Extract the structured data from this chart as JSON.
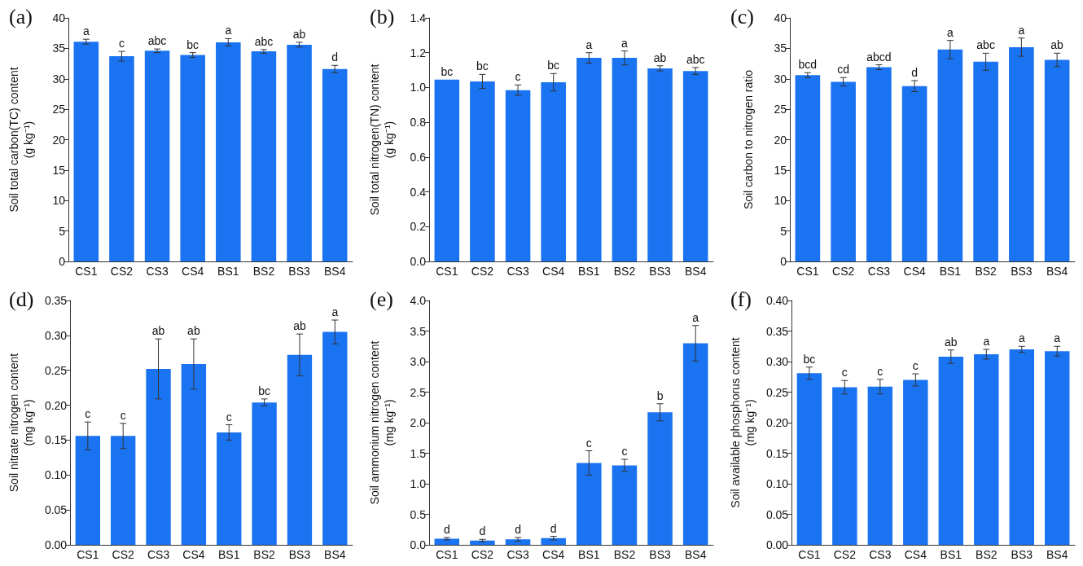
{
  "chart_data": [
    {
      "type": "bar",
      "title": "(a)",
      "ylabel": "Soil total carbon(TC) content\n(g kg⁻¹)",
      "categories": [
        "CS1",
        "CS2",
        "CS3",
        "CS4",
        "BS1",
        "BS2",
        "BS3",
        "BS4"
      ],
      "values": [
        36.1,
        33.7,
        34.6,
        33.9,
        36.0,
        34.5,
        35.6,
        31.6
      ],
      "errors": [
        0.4,
        0.8,
        0.3,
        0.4,
        0.6,
        0.3,
        0.4,
        0.6
      ],
      "color": "#1a73f0",
      "ylim": [
        0,
        40
      ],
      "yticks": [
        0,
        5,
        10,
        15,
        20,
        25,
        30,
        35,
        40
      ],
      "annotations": [
        {
          "text": "a",
          "x": "CS1",
          "y": 36.1
        },
        {
          "text": "c",
          "x": "CS2",
          "y": 33.7
        },
        {
          "text": "abc",
          "x": "CS3",
          "y": 34.6
        },
        {
          "text": "bc",
          "x": "CS4",
          "y": 33.9
        },
        {
          "text": "a",
          "x": "BS1",
          "y": 36.0
        },
        {
          "text": "abc",
          "x": "BS2",
          "y": 34.5
        },
        {
          "text": "ab",
          "x": "BS3",
          "y": 35.6
        },
        {
          "text": "d",
          "x": "BS4",
          "y": 31.6
        }
      ]
    },
    {
      "type": "bar",
      "title": "(b)",
      "ylabel": "Soil total nitrogen(TN) content\n(g kg⁻¹)",
      "categories": [
        "CS1",
        "CS2",
        "CS3",
        "CS4",
        "BS1",
        "BS2",
        "BS3",
        "BS4"
      ],
      "values": [
        1.045,
        1.035,
        0.985,
        1.03,
        1.17,
        1.17,
        1.11,
        1.095
      ],
      "errors": [
        null,
        0.04,
        0.03,
        0.05,
        0.03,
        0.04,
        0.015,
        0.02
      ],
      "color": "#1a73f0",
      "ylim": [
        0,
        1.4
      ],
      "yticks": [
        {
          "value": 0,
          "label": "0.0"
        },
        0.2,
        0.4,
        0.6,
        0.8,
        {
          "value": 1,
          "label": "1.0"
        },
        1.2,
        1.4
      ],
      "annotations": [
        {
          "text": "bc",
          "x": "CS1",
          "y": 1.045
        },
        {
          "text": "bc",
          "x": "CS2",
          "y": 1.035
        },
        {
          "text": "c",
          "x": "CS3",
          "y": 0.985
        },
        {
          "text": "bc",
          "x": "CS4",
          "y": 1.03
        },
        {
          "text": "a",
          "x": "BS1",
          "y": 1.17
        },
        {
          "text": "a",
          "x": "BS2",
          "y": 1.17
        },
        {
          "text": "ab",
          "x": "BS3",
          "y": 1.11
        },
        {
          "text": "abc",
          "x": "BS4",
          "y": 1.095
        }
      ]
    },
    {
      "type": "bar",
      "title": "(c)",
      "ylabel": "Soil carbon to nitrogen ratio",
      "categories": [
        "CS1",
        "CS2",
        "CS3",
        "CS4",
        "BS1",
        "BS2",
        "BS3",
        "BS4"
      ],
      "values": [
        30.6,
        29.5,
        31.9,
        28.8,
        34.8,
        32.8,
        35.2,
        33.1
      ],
      "errors": [
        0.4,
        0.7,
        0.4,
        0.9,
        1.5,
        1.4,
        1.5,
        1.1
      ],
      "color": "#1a73f0",
      "ylim": [
        0,
        40
      ],
      "yticks": [
        0,
        5,
        10,
        15,
        20,
        25,
        30,
        35,
        40
      ],
      "annotations": [
        {
          "text": "bcd",
          "x": "CS1",
          "y": 30.6
        },
        {
          "text": "cd",
          "x": "CS2",
          "y": 29.5
        },
        {
          "text": "abcd",
          "x": "CS3",
          "y": 31.9
        },
        {
          "text": "d",
          "x": "CS4",
          "y": 28.8
        },
        {
          "text": "a",
          "x": "BS1",
          "y": 34.8
        },
        {
          "text": "abc",
          "x": "BS2",
          "y": 32.8
        },
        {
          "text": "a",
          "x": "BS3",
          "y": 35.2
        },
        {
          "text": "ab",
          "x": "BS4",
          "y": 33.1
        }
      ]
    },
    {
      "type": "bar",
      "title": "(d)",
      "ylabel": "Soil nitrate nitrogen content\n(mg kg⁻¹)",
      "categories": [
        "CS1",
        "CS2",
        "CS3",
        "CS4",
        "BS1",
        "BS2",
        "BS3",
        "BS4"
      ],
      "values": [
        0.156,
        0.156,
        0.252,
        0.259,
        0.161,
        0.204,
        0.272,
        0.305
      ],
      "errors": [
        0.02,
        0.018,
        0.043,
        0.036,
        0.011,
        0.005,
        0.03,
        0.017
      ],
      "color": "#1a73f0",
      "ylim": [
        0,
        0.35
      ],
      "yticks": [
        {
          "value": 0,
          "label": "0.00"
        },
        0.05,
        {
          "value": 0.1,
          "label": "0.10"
        },
        0.15,
        {
          "value": 0.2,
          "label": "0.20"
        },
        0.25,
        {
          "value": 0.3,
          "label": "0.30"
        },
        0.35
      ],
      "annotations": [
        {
          "text": "c",
          "x": "CS1",
          "y": 0.156
        },
        {
          "text": "c",
          "x": "CS2",
          "y": 0.156
        },
        {
          "text": "ab",
          "x": "CS3",
          "y": 0.252
        },
        {
          "text": "ab",
          "x": "CS4",
          "y": 0.259
        },
        {
          "text": "c",
          "x": "BS1",
          "y": 0.161
        },
        {
          "text": "bc",
          "x": "BS2",
          "y": 0.204
        },
        {
          "text": "ab",
          "x": "BS3",
          "y": 0.272
        },
        {
          "text": "a",
          "x": "BS4",
          "y": 0.305
        }
      ]
    },
    {
      "type": "bar",
      "title": "(e)",
      "ylabel": "Soil ammonium nitrogen content\n(mg kg⁻¹)",
      "categories": [
        "CS1",
        "CS2",
        "CS3",
        "CS4",
        "BS1",
        "BS2",
        "BS3",
        "BS4"
      ],
      "values": [
        0.1,
        0.07,
        0.09,
        0.11,
        1.34,
        1.3,
        2.17,
        3.3
      ],
      "errors": [
        0.02,
        0.02,
        0.03,
        0.03,
        0.2,
        0.1,
        0.14,
        0.29
      ],
      "color": "#1a73f0",
      "ylim": [
        0,
        4
      ],
      "yticks": [
        {
          "value": 0,
          "label": "0.0"
        },
        0.5,
        {
          "value": 1,
          "label": "1.0"
        },
        1.5,
        {
          "value": 2,
          "label": "2.0"
        },
        2.5,
        {
          "value": 3,
          "label": "3.0"
        },
        3.5,
        {
          "value": 4,
          "label": "4.0"
        }
      ],
      "annotations": [
        {
          "text": "d",
          "x": "CS1",
          "y": 0.1
        },
        {
          "text": "d",
          "x": "CS2",
          "y": 0.07
        },
        {
          "text": "d",
          "x": "CS3",
          "y": 0.09
        },
        {
          "text": "d",
          "x": "CS4",
          "y": 0.11
        },
        {
          "text": "c",
          "x": "BS1",
          "y": 1.34
        },
        {
          "text": "c",
          "x": "BS2",
          "y": 1.3
        },
        {
          "text": "b",
          "x": "BS3",
          "y": 2.17
        },
        {
          "text": "a",
          "x": "BS4",
          "y": 3.3
        }
      ]
    },
    {
      "type": "bar",
      "title": "(f)",
      "ylabel": "Soil available phosphorus content\n(mg kg⁻¹)",
      "categories": [
        "CS1",
        "CS2",
        "CS3",
        "CS4",
        "BS1",
        "BS2",
        "BS3",
        "BS4"
      ],
      "values": [
        0.281,
        0.258,
        0.259,
        0.27,
        0.308,
        0.312,
        0.32,
        0.317
      ],
      "errors": [
        0.01,
        0.011,
        0.012,
        0.01,
        0.011,
        0.008,
        0.005,
        0.008
      ],
      "color": "#1a73f0",
      "ylim": [
        0,
        0.4
      ],
      "yticks": [
        {
          "value": 0,
          "label": "0.00"
        },
        0.05,
        {
          "value": 0.1,
          "label": "0.10"
        },
        0.15,
        {
          "value": 0.2,
          "label": "0.20"
        },
        0.25,
        {
          "value": 0.3,
          "label": "0.30"
        },
        0.35,
        {
          "value": 0.4,
          "label": "0.40"
        }
      ],
      "annotations": [
        {
          "text": "bc",
          "x": "CS1",
          "y": 0.281
        },
        {
          "text": "c",
          "x": "CS2",
          "y": 0.258
        },
        {
          "text": "c",
          "x": "CS3",
          "y": 0.259
        },
        {
          "text": "c",
          "x": "CS4",
          "y": 0.27
        },
        {
          "text": "ab",
          "x": "BS1",
          "y": 0.308
        },
        {
          "text": "a",
          "x": "BS2",
          "y": 0.312
        },
        {
          "text": "a",
          "x": "BS3",
          "y": 0.32
        },
        {
          "text": "a",
          "x": "BS4",
          "y": 0.317
        }
      ]
    }
  ]
}
